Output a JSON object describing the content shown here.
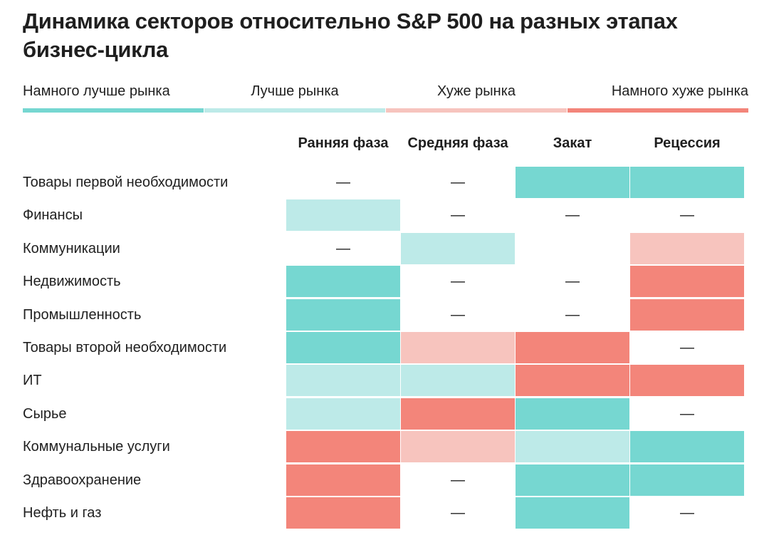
{
  "chart_data": {
    "type": "heatmap",
    "title": "Динамика секторов относительно S&P 500 на разных этапах бизнес-цикла",
    "legend": [
      {
        "label": "Намного лучше рынка",
        "color": "#76d7d1"
      },
      {
        "label": "Лучше рынка",
        "color": "#bdeae8"
      },
      {
        "label": "Хуже рынка",
        "color": "#f7c4be"
      },
      {
        "label": "Намного хуже рынка",
        "color": "#f3857a"
      }
    ],
    "neutral_symbol": "—",
    "columns": [
      "Ранняя фаза",
      "Средняя фаза",
      "Закат",
      "Рецессия"
    ],
    "rows": [
      {
        "label": "Товары первой необходимости",
        "values": [
          null,
          null,
          0,
          0
        ]
      },
      {
        "label": "Финансы",
        "values": [
          1,
          null,
          null,
          null
        ]
      },
      {
        "label": "Коммуникации",
        "values": [
          null,
          1,
          "",
          2
        ]
      },
      {
        "label": "Недвижимость",
        "values": [
          0,
          null,
          null,
          3
        ]
      },
      {
        "label": "Промышленность",
        "values": [
          0,
          null,
          null,
          3
        ]
      },
      {
        "label": "Товары второй необходимости",
        "values": [
          0,
          2,
          3,
          null
        ]
      },
      {
        "label": "ИТ",
        "values": [
          1,
          1,
          3,
          3
        ]
      },
      {
        "label": "Сырье",
        "values": [
          1,
          3,
          0,
          null
        ]
      },
      {
        "label": "Коммунальные услуги",
        "values": [
          3,
          2,
          1,
          0
        ]
      },
      {
        "label": "Здравоохранение",
        "values": [
          3,
          null,
          0,
          0
        ]
      },
      {
        "label": "Нефть и газ",
        "values": [
          3,
          null,
          0,
          null
        ]
      }
    ]
  }
}
